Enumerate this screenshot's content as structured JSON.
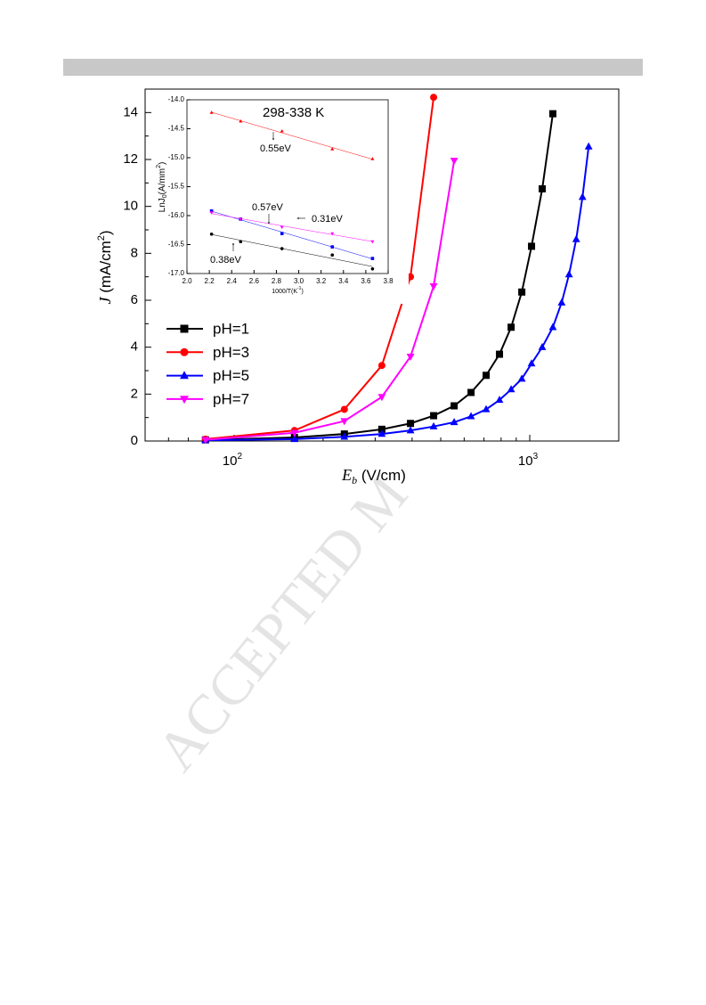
{
  "chart_data": [
    {
      "type": "line",
      "xscale": "log",
      "xlabel": {
        "main": "E",
        "sub": "b",
        "rest": " (V/cm)"
      },
      "ylabel": {
        "main": "J",
        "rest": " (mA/cm",
        "sup": "2",
        "close": ")"
      },
      "xlim": [
        50,
        2000
      ],
      "ylim": [
        0,
        15
      ],
      "xticks": [
        {
          "value": 100,
          "label": "10",
          "exponent": "2"
        },
        {
          "value": 1000,
          "label": "10",
          "exponent": "3"
        }
      ],
      "xminorticks": [
        50,
        60,
        70,
        80,
        90,
        200,
        300,
        400,
        500,
        600,
        700,
        800,
        900,
        2000
      ],
      "yticks": [
        0,
        2,
        4,
        6,
        8,
        10,
        12,
        14
      ],
      "yminorticks": [
        1,
        3,
        5,
        7,
        9,
        11,
        13
      ],
      "legend": "left",
      "series": [
        {
          "name": "pH=1",
          "color": "#000000",
          "marker": "square",
          "x": [
            80,
            160,
            236,
            316,
            395,
            473,
            555,
            633,
            712,
            790,
            865,
            940,
            1014,
            1102,
            1197
          ],
          "values": [
            0.05,
            0.15,
            0.3,
            0.5,
            0.75,
            1.08,
            1.5,
            2.07,
            2.8,
            3.7,
            4.85,
            6.35,
            8.3,
            10.75,
            13.95
          ]
        },
        {
          "name": "pH=3",
          "color": "#ff0000",
          "marker": "circle",
          "x": [
            80,
            160,
            236,
            316,
            395,
            473
          ],
          "values": [
            0.08,
            0.45,
            1.35,
            3.22,
            7.0,
            14.65
          ]
        },
        {
          "name": "pH=5",
          "color": "#0000ff",
          "marker": "triangle-up",
          "x": [
            80,
            160,
            236,
            316,
            395,
            473,
            555,
            633,
            712,
            790,
            865,
            940,
            1014,
            1102,
            1197,
            1282,
            1358,
            1436,
            1508,
            1582
          ],
          "values": [
            0.03,
            0.08,
            0.18,
            0.3,
            0.45,
            0.62,
            0.8,
            1.05,
            1.35,
            1.75,
            2.2,
            2.65,
            3.3,
            4.0,
            4.85,
            5.9,
            7.1,
            8.6,
            10.4,
            12.55
          ]
        },
        {
          "name": "pH=7",
          "color": "#ff00ff",
          "marker": "triangle-down",
          "x": [
            80,
            160,
            236,
            316,
            395,
            473,
            555
          ],
          "values": [
            0.05,
            0.35,
            0.85,
            1.88,
            3.6,
            6.6,
            11.95
          ]
        }
      ]
    },
    {
      "type": "scatter",
      "xlabel": {
        "main": "1000/T(K",
        "sup": "-1",
        "close": ")"
      },
      "ylabel": {
        "main": "LnJ",
        "sub": "0",
        "rest": "(A/mm",
        "sup": "2",
        "close": ")"
      },
      "xlim": [
        2.0,
        3.8
      ],
      "ylim": [
        -17.0,
        -14.0
      ],
      "xticks": [
        {
          "value": 2.0,
          "label": "2.0"
        },
        {
          "value": 2.2,
          "label": "2.2"
        },
        {
          "value": 2.4,
          "label": "2.4"
        },
        {
          "value": 2.6,
          "label": "2.6"
        },
        {
          "value": 2.8,
          "label": "2.8"
        },
        {
          "value": 3.0,
          "label": "3.0"
        },
        {
          "value": 3.2,
          "label": "3.2"
        },
        {
          "value": 3.4,
          "label": "3.4"
        },
        {
          "value": 3.6,
          "label": "3.6"
        },
        {
          "value": 3.8,
          "label": "3.8"
        }
      ],
      "yticks": [
        {
          "value": -14.0,
          "label": "-14.0"
        },
        {
          "value": -14.5,
          "label": "-14.5"
        },
        {
          "value": -15.0,
          "label": "-15.0"
        },
        {
          "value": -15.5,
          "label": "-15.5"
        },
        {
          "value": -16.0,
          "label": "-16.0"
        },
        {
          "value": -16.5,
          "label": "-16.5"
        },
        {
          "value": -17.0,
          "label": "-17.0"
        }
      ],
      "annotations": [
        "298-338 K",
        "0.55eV",
        "0.57eV",
        "0.31eV",
        "0.38eV"
      ],
      "series": [
        {
          "color": "#ff0000",
          "marker": "triangle-up",
          "x": [
            2.22,
            2.48,
            2.85,
            3.3,
            3.66
          ],
          "values": [
            -14.22,
            -14.37,
            -14.54,
            -14.85,
            -15.02
          ]
        },
        {
          "color": "#0000ff",
          "marker": "square",
          "x": [
            2.22,
            2.48,
            2.85,
            3.3,
            3.66
          ],
          "values": [
            -15.92,
            -16.06,
            -16.31,
            -16.54,
            -16.74
          ]
        },
        {
          "color": "#ff00ff",
          "marker": "triangle-down",
          "x": [
            2.22,
            2.48,
            2.85,
            3.3,
            3.66
          ],
          "values": [
            -15.95,
            -16.06,
            -16.2,
            -16.31,
            -16.45
          ]
        },
        {
          "color": "#000000",
          "marker": "circle",
          "x": [
            2.22,
            2.48,
            2.85,
            3.3,
            3.66
          ],
          "values": [
            -16.32,
            -16.45,
            -16.57,
            -16.68,
            -16.92
          ]
        }
      ]
    }
  ],
  "watermark": "ACCEPTED M"
}
